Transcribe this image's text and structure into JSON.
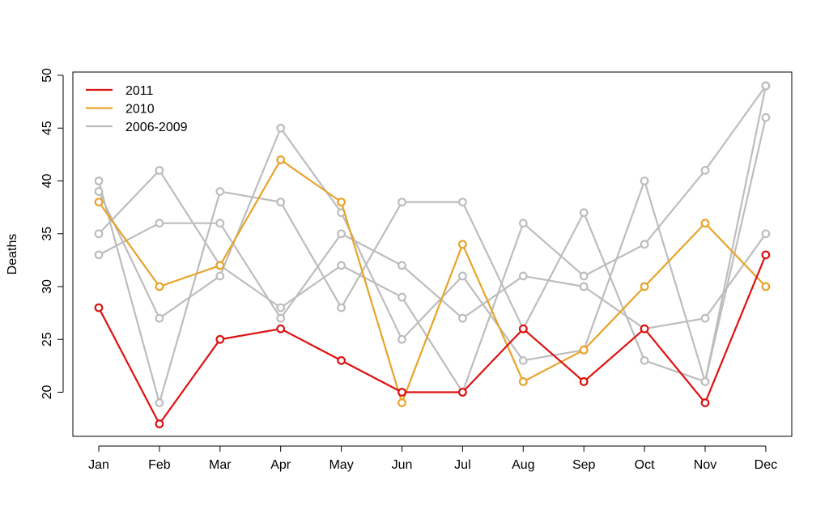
{
  "chart_data": {
    "type": "line",
    "title": "",
    "xlabel": "",
    "ylabel": "Deaths",
    "categories": [
      "Jan",
      "Feb",
      "Mar",
      "Apr",
      "May",
      "Jun",
      "Jul",
      "Aug",
      "Sep",
      "Oct",
      "Nov",
      "Dec"
    ],
    "y_ticks": [
      20,
      25,
      30,
      35,
      40,
      45,
      50
    ],
    "ylim": [
      15,
      50
    ],
    "grid": false,
    "legend_position": "top-left",
    "legend": [
      {
        "label": "2011",
        "color": "#dd1111"
      },
      {
        "label": "2010",
        "color": "#e8a32a"
      },
      {
        "label": "2006-2009",
        "color": "#bdbdbd"
      }
    ],
    "series": [
      {
        "name": "2006-2009",
        "color": "#bdbdbd",
        "values": [
          40,
          19,
          39,
          38,
          28,
          38,
          38,
          26,
          37,
          23,
          21,
          49
        ]
      },
      {
        "name": "2006-2009",
        "color": "#bdbdbd",
        "values": [
          39,
          27,
          31,
          45,
          37,
          25,
          31,
          23,
          24,
          40,
          21,
          46
        ]
      },
      {
        "name": "2006-2009",
        "color": "#bdbdbd",
        "values": [
          35,
          41,
          32,
          28,
          32,
          29,
          20,
          36,
          31,
          34,
          41,
          49
        ]
      },
      {
        "name": "2006-2009",
        "color": "#bdbdbd",
        "values": [
          33,
          36,
          36,
          27,
          35,
          32,
          27,
          31,
          30,
          26,
          27,
          35
        ]
      },
      {
        "name": "2010",
        "color": "#e8a32a",
        "values": [
          38,
          30,
          32,
          42,
          38,
          19,
          34,
          21,
          24,
          30,
          36,
          30
        ]
      },
      {
        "name": "2011",
        "color": "#dd1111",
        "values": [
          28,
          17,
          25,
          26,
          23,
          20,
          20,
          26,
          21,
          26,
          19,
          33
        ]
      }
    ]
  }
}
